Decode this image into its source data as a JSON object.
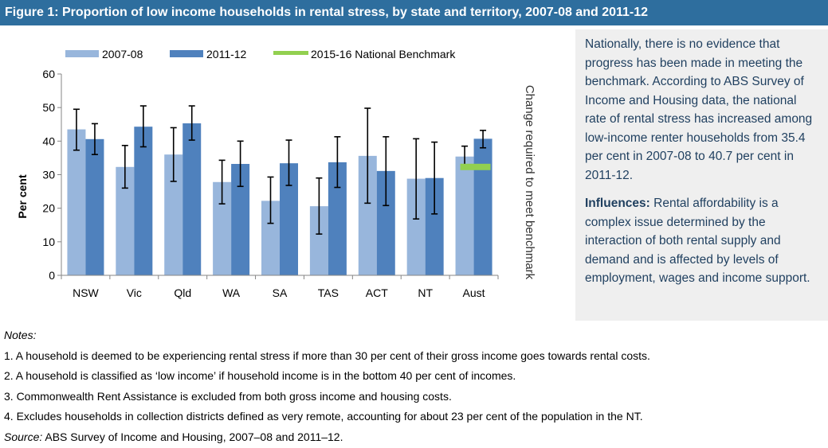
{
  "title": "Figure 1: Proportion of low income households in rental stress, by state and territory, 2007-08 and 2011-12",
  "colors": {
    "series1": "#98b6dc",
    "series2": "#4f81bd",
    "benchmark": "#92d050",
    "title_bg": "#2e6e9e",
    "panel_bg": "#efefef",
    "panel_text": "#1f3f5f"
  },
  "chart_data": {
    "type": "bar",
    "categories": [
      "NSW",
      "Vic",
      "Qld",
      "WA",
      "SA",
      "TAS",
      "ACT",
      "NT",
      "Aust"
    ],
    "series": [
      {
        "name": "2007-08",
        "values": [
          43.5,
          32.3,
          36.0,
          27.8,
          22.2,
          20.6,
          35.6,
          28.8,
          35.4
        ],
        "error_low": [
          37.3,
          26.0,
          28.0,
          21.3,
          15.5,
          12.3,
          21.5,
          16.8,
          32.3
        ],
        "error_high": [
          49.5,
          38.7,
          44.0,
          34.3,
          29.3,
          29.0,
          49.8,
          40.7,
          38.5
        ]
      },
      {
        "name": "2011-12",
        "values": [
          40.6,
          44.3,
          45.3,
          33.2,
          33.4,
          33.7,
          31.1,
          29.0,
          40.7
        ],
        "error_low": [
          36.0,
          38.3,
          40.3,
          26.5,
          26.8,
          26.2,
          20.8,
          18.3,
          38.0
        ],
        "error_high": [
          45.2,
          50.5,
          50.5,
          40.0,
          40.3,
          41.3,
          41.3,
          39.7,
          43.2
        ]
      }
    ],
    "benchmark": {
      "name": "2015-16 National Benchmark",
      "category": "Aust",
      "value": 32.3
    },
    "ylabel": "Per cent",
    "ylim": [
      0,
      60
    ],
    "yticks": [
      "0",
      "10",
      "20",
      "30",
      "40",
      "50",
      "60"
    ],
    "right_axis_label": "Change required to meet benchmark",
    "legend_position": "top"
  },
  "side_panel": {
    "paragraph1": "Nationally, there is no evidence that progress has been made in meeting the benchmark. According to ABS Survey of Income and Housing data, the national rate of rental stress has increased among low-income renter households from 35.4 per cent in 2007-08 to 40.7 per cent in 2011-12.",
    "influences_label": "Influences:",
    "influences_text": " Rental affordability is a complex issue determined by the interaction of both rental supply and demand and is affected by levels of employment, wages and income support."
  },
  "notes": {
    "heading": "Notes:",
    "items": [
      "1. A household is deemed to be experiencing rental stress if more than 30 per cent of their gross income goes towards rental costs.",
      "2. A household is classified as ‘low income’ if household income is in the bottom 40 per cent of incomes.",
      "3. Commonwealth Rent Assistance is excluded from both gross income and housing costs.",
      "4. Excludes households in collection districts defined as very remote, accounting for about 23 per cent of the population in the NT."
    ],
    "source_label": "Source:",
    "source_text": " ABS Survey of Income and Housing, 2007–08 and 2011–12."
  }
}
